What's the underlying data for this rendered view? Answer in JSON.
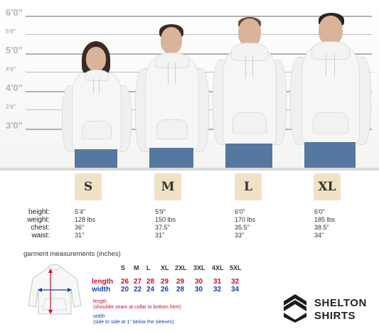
{
  "height_scale": {
    "major": [
      "6'0\"",
      "5'0\"",
      "4'0\"",
      "3'0\""
    ],
    "minor": [
      "5'6\"",
      "4'6\"",
      "3'6\""
    ]
  },
  "row_labels": {
    "height": "height:",
    "weight": "weight:",
    "chest": "chest:",
    "waist": "waist:"
  },
  "models": [
    {
      "size": "S",
      "height": "5'4\"",
      "weight": "128 lbs",
      "chest": "36\"",
      "waist": "31\""
    },
    {
      "size": "M",
      "height": "5'9\"",
      "weight": "150 lbs",
      "chest": "37.5\"",
      "waist": "31\""
    },
    {
      "size": "L",
      "height": "6'0\"",
      "weight": "170 lbs",
      "chest": "35.5\"",
      "waist": "33\""
    },
    {
      "size": "XL",
      "height": "6'0\"",
      "weight": "185 lbs",
      "chest": "38.5\"",
      "waist": "34\""
    }
  ],
  "garment": {
    "title": "garment measurements (inches)",
    "sizes": [
      "S",
      "M",
      "L",
      "XL",
      "2XL",
      "3XL",
      "4XL",
      "5XL"
    ],
    "length_label": "length",
    "width_label": "width",
    "length_values": [
      "26",
      "27",
      "28",
      "29",
      "29",
      "30",
      "31",
      "32"
    ],
    "width_values": [
      "20",
      "22",
      "24",
      "26",
      "28",
      "30",
      "32",
      "34"
    ],
    "length_note_title": "length",
    "length_note": "(shoulder seam at collar to bottom hem)",
    "width_note_title": "width",
    "width_note": "(side to side at 1\" below the sleeves)"
  },
  "brand": {
    "line1": "SHELTON",
    "line2": "SHIRTS"
  },
  "colors": {
    "length": "#c8102e",
    "width": "#1f3fae",
    "size_box": "#efe2c6"
  }
}
